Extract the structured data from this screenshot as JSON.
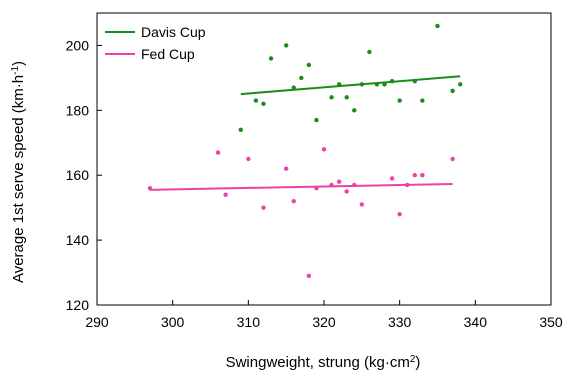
{
  "chart_data": {
    "type": "scatter",
    "title": "",
    "xlabel": "Swingweight, strung (kg·cm",
    "xlabel_sup": "2",
    "xlabel_end": ")",
    "ylabel": "Average 1st serve speed (km·h",
    "ylabel_sup": "-1",
    "ylabel_end": ")",
    "xlim": [
      290,
      350
    ],
    "ylim": [
      120,
      210
    ],
    "xticks": [
      290,
      300,
      310,
      320,
      330,
      340,
      350
    ],
    "yticks": [
      120,
      140,
      160,
      180,
      200
    ],
    "grid": false,
    "legend": "top-left",
    "series": [
      {
        "name": "Davis Cup",
        "color": "#1a8c1a",
        "points": [
          [
            309,
            174
          ],
          [
            311,
            183
          ],
          [
            312,
            182
          ],
          [
            313,
            196
          ],
          [
            315,
            200
          ],
          [
            316,
            187
          ],
          [
            317,
            190
          ],
          [
            318,
            194
          ],
          [
            319,
            177
          ],
          [
            321,
            184
          ],
          [
            322,
            188
          ],
          [
            323,
            184
          ],
          [
            324,
            180
          ],
          [
            325,
            188
          ],
          [
            326,
            198
          ],
          [
            327,
            188
          ],
          [
            328,
            188
          ],
          [
            329,
            189
          ],
          [
            330,
            183
          ],
          [
            332,
            189
          ],
          [
            333,
            183
          ],
          [
            335,
            206
          ],
          [
            337,
            186
          ],
          [
            338,
            188
          ]
        ],
        "trend": [
          [
            309,
            185
          ],
          [
            338,
            190.5
          ]
        ]
      },
      {
        "name": "Fed Cup",
        "color": "#ee40a8",
        "points": [
          [
            297,
            156
          ],
          [
            306,
            167
          ],
          [
            307,
            154
          ],
          [
            310,
            165
          ],
          [
            312,
            150
          ],
          [
            315,
            162
          ],
          [
            316,
            152
          ],
          [
            318,
            129
          ],
          [
            319,
            156
          ],
          [
            320,
            168
          ],
          [
            321,
            157
          ],
          [
            322,
            158
          ],
          [
            323,
            155
          ],
          [
            324,
            157
          ],
          [
            325,
            151
          ],
          [
            329,
            159
          ],
          [
            330,
            148
          ],
          [
            331,
            157
          ],
          [
            332,
            160
          ],
          [
            333,
            160
          ],
          [
            337,
            165
          ]
        ],
        "trend": [
          [
            297,
            155.5
          ],
          [
            337,
            157.3
          ]
        ]
      }
    ]
  }
}
